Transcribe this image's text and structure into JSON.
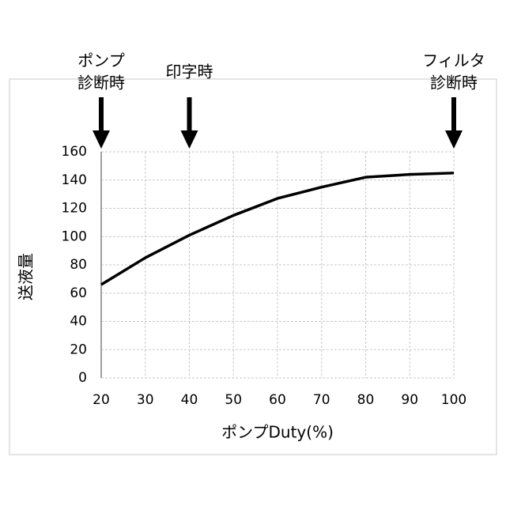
{
  "chart_data": {
    "type": "line",
    "xlabel": "ポンプDuty(%)",
    "ylabel": "送液量",
    "x": [
      20,
      30,
      40,
      50,
      60,
      70,
      80,
      90,
      100
    ],
    "series": [
      {
        "color": "#000000",
        "values": [
          66,
          85,
          101,
          115,
          127,
          135,
          142,
          144,
          145
        ]
      }
    ],
    "xlim": [
      20,
      100
    ],
    "xticks": [
      20,
      30,
      40,
      50,
      60,
      70,
      80,
      90,
      100
    ],
    "ylim": [
      0,
      160
    ],
    "yticks": [
      0,
      20,
      40,
      60,
      80,
      100,
      120,
      140,
      160
    ],
    "grid": true,
    "annotations": [
      {
        "x": 20,
        "lines": [
          "ポンプ",
          "診断時"
        ]
      },
      {
        "x": 40,
        "lines": [
          "印字時"
        ]
      },
      {
        "x": 100,
        "lines": [
          "フィルタ",
          "診断時"
        ]
      }
    ]
  }
}
